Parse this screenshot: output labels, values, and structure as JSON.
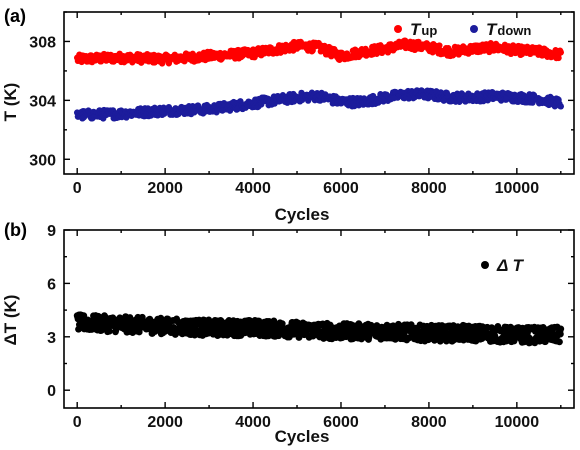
{
  "chart_data": [
    {
      "panel_label": "(a)",
      "type": "scatter",
      "xlabel": "Cycles",
      "ylabel": "T (K)",
      "xlim": [
        -300,
        11300
      ],
      "ylim": [
        299,
        310
      ],
      "xticks": [
        0,
        2000,
        4000,
        6000,
        8000,
        10000
      ],
      "yticks": [
        300,
        304,
        308
      ],
      "legend_position": "top-right",
      "series": [
        {
          "legend_prefix": "T",
          "legend_sub": "up",
          "color": "#ff0000",
          "x": [
            0,
            1000,
            2000,
            3000,
            4000,
            5000,
            5500,
            6000,
            6500,
            7000,
            7500,
            8000,
            8500,
            9000,
            9500,
            10000,
            10500,
            11000
          ],
          "y": [
            306.8,
            306.9,
            306.8,
            307.0,
            307.2,
            307.7,
            307.6,
            307.0,
            307.3,
            307.5,
            307.8,
            307.6,
            307.3,
            307.5,
            307.6,
            307.4,
            307.3,
            307.1
          ],
          "noise": 0.6
        },
        {
          "legend_prefix": "T",
          "legend_sub": "down",
          "color": "#1c1c9c",
          "x": [
            0,
            1000,
            2000,
            3000,
            4000,
            5000,
            5500,
            6000,
            6500,
            7000,
            7500,
            8000,
            8500,
            9000,
            9500,
            10000,
            10500,
            11000
          ],
          "y": [
            303.0,
            303.1,
            303.3,
            303.4,
            303.8,
            304.2,
            304.3,
            303.9,
            303.9,
            304.2,
            304.4,
            304.4,
            304.2,
            304.2,
            304.3,
            304.2,
            304.1,
            303.8
          ],
          "noise": 0.6
        }
      ]
    },
    {
      "panel_label": "(b)",
      "type": "scatter",
      "xlabel": "Cycles",
      "ylabel": "ΔT (K)",
      "xlim": [
        -300,
        11300
      ],
      "ylim": [
        -1,
        9
      ],
      "xticks": [
        0,
        2000,
        4000,
        6000,
        8000,
        10000
      ],
      "yticks": [
        0,
        3,
        6,
        9
      ],
      "legend_position": "top-right",
      "series": [
        {
          "legend_prefix": "Δ T",
          "legend_sub": "",
          "color": "#000000",
          "x": [
            0,
            1000,
            2000,
            3000,
            4000,
            5000,
            6000,
            7000,
            8000,
            9000,
            10000,
            11000
          ],
          "y": [
            3.8,
            3.7,
            3.6,
            3.5,
            3.5,
            3.4,
            3.3,
            3.3,
            3.2,
            3.2,
            3.1,
            3.1
          ],
          "noise": 0.9
        }
      ]
    }
  ]
}
